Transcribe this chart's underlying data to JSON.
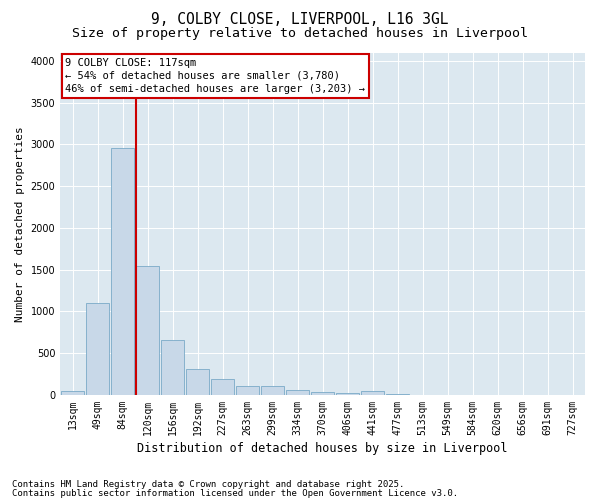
{
  "title": "9, COLBY CLOSE, LIVERPOOL, L16 3GL",
  "subtitle": "Size of property relative to detached houses in Liverpool",
  "xlabel": "Distribution of detached houses by size in Liverpool",
  "ylabel": "Number of detached properties",
  "categories": [
    "13sqm",
    "49sqm",
    "84sqm",
    "120sqm",
    "156sqm",
    "192sqm",
    "227sqm",
    "263sqm",
    "299sqm",
    "334sqm",
    "370sqm",
    "406sqm",
    "441sqm",
    "477sqm",
    "513sqm",
    "549sqm",
    "584sqm",
    "620sqm",
    "656sqm",
    "691sqm",
    "727sqm"
  ],
  "values": [
    50,
    1100,
    2960,
    1540,
    660,
    310,
    190,
    110,
    105,
    65,
    30,
    25,
    50,
    10,
    0,
    0,
    0,
    0,
    0,
    0,
    0
  ],
  "bar_color": "#c8d8e8",
  "bar_edge_color": "#7aaac8",
  "bar_linewidth": 0.6,
  "vline_x": 3,
  "vline_color": "#cc0000",
  "vline_linewidth": 1.5,
  "annotation_box_text": "9 COLBY CLOSE: 117sqm\n← 54% of detached houses are smaller (3,780)\n46% of semi-detached houses are larger (3,203) →",
  "ylim": [
    0,
    4100
  ],
  "fig_bg_color": "#ffffff",
  "plot_bg_color": "#dce8f0",
  "grid_color": "#ffffff",
  "footer_line1": "Contains HM Land Registry data © Crown copyright and database right 2025.",
  "footer_line2": "Contains public sector information licensed under the Open Government Licence v3.0.",
  "title_fontsize": 10.5,
  "subtitle_fontsize": 9.5,
  "xlabel_fontsize": 8.5,
  "ylabel_fontsize": 8,
  "tick_fontsize": 7,
  "annotation_fontsize": 7.5,
  "footer_fontsize": 6.5
}
